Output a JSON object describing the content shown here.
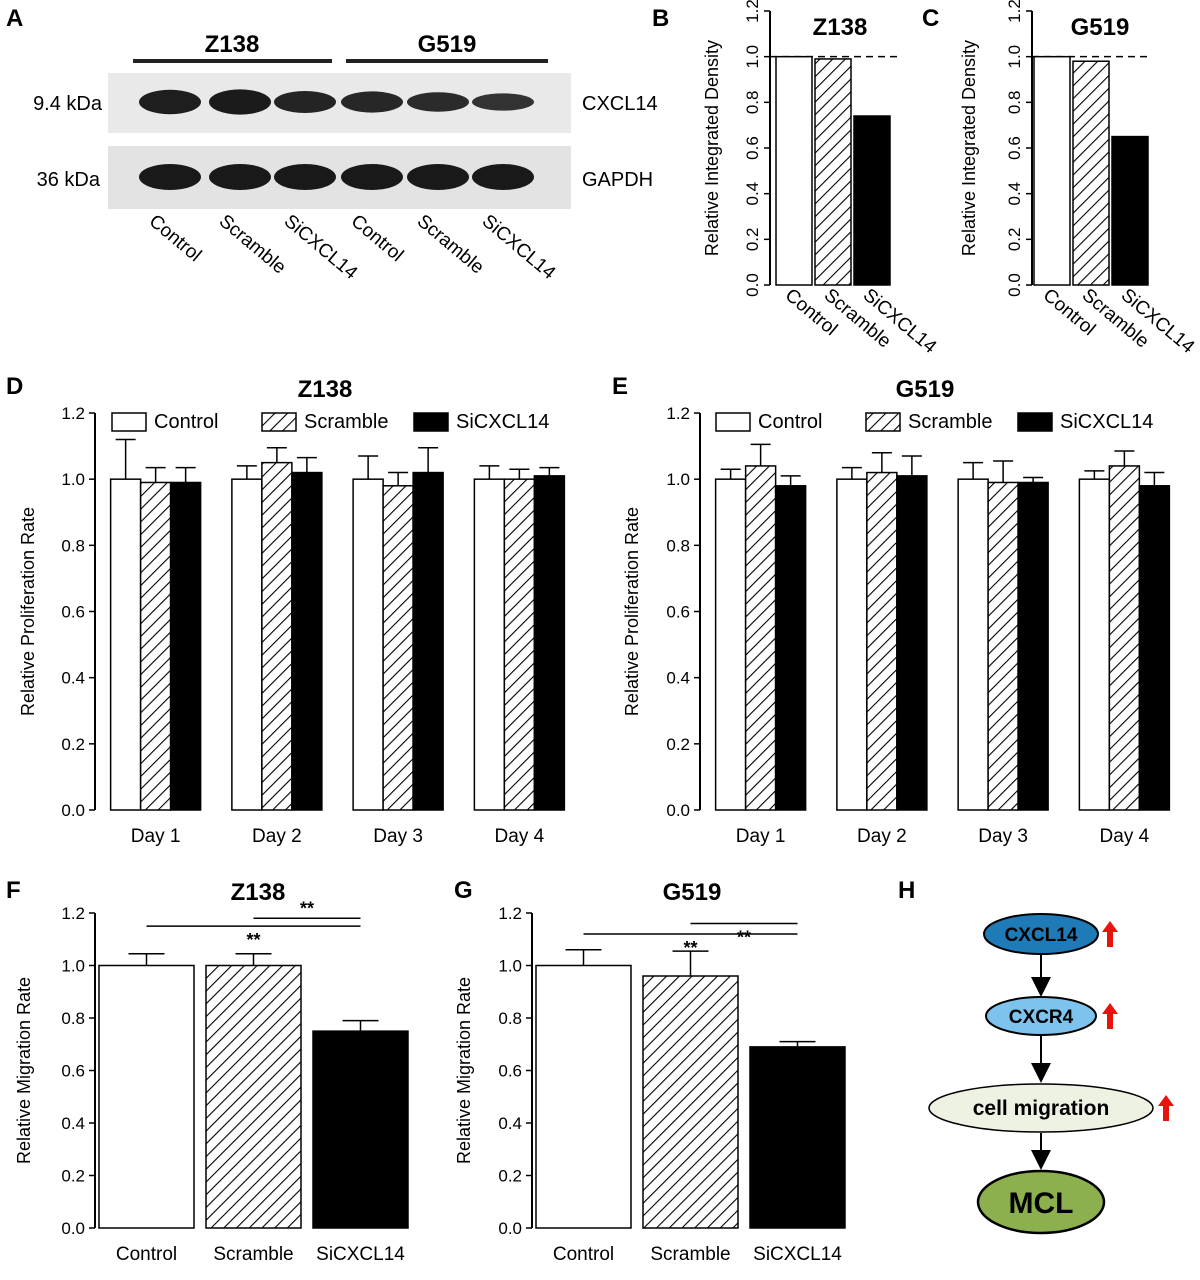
{
  "panels": {
    "A": {
      "letter": "A",
      "groups": [
        "Z138",
        "G519"
      ],
      "bands": [
        {
          "size_label": "9.4 kDa",
          "protein": "CXCL14",
          "intensities": [
            0.9,
            0.95,
            0.75,
            0.7,
            0.6,
            0.45
          ]
        },
        {
          "size_label": "36 kDa",
          "protein": "GAPDH",
          "intensities": [
            1,
            1,
            1,
            1,
            1,
            1
          ]
        }
      ],
      "lanes": [
        "Control",
        "Scramble",
        "SiCXCL14",
        "Control",
        "Scramble",
        "SiCXCL14"
      ]
    },
    "B": {
      "letter": "B"
    },
    "C": {
      "letter": "C"
    },
    "D": {
      "letter": "D"
    },
    "E": {
      "letter": "E"
    },
    "F": {
      "letter": "F"
    },
    "G": {
      "letter": "G"
    },
    "H": {
      "letter": "H",
      "nodes": [
        "CXCL14",
        "CXCR4",
        "cell migration",
        "MCL"
      ],
      "up_arrow_color": "#e8140c",
      "node_colors": [
        "#1f7ab8",
        "#7ec3ee",
        "#eef2e2",
        "#8db04f"
      ]
    }
  },
  "chart_data": [
    {
      "id": "B",
      "type": "bar",
      "title": "Z138",
      "xlabel": "",
      "ylabel": "Relative Integrated Density",
      "categories": [
        "Control",
        "Scramble",
        "SiCXCL14"
      ],
      "values": [
        1.0,
        0.99,
        0.74
      ],
      "fills": [
        "white",
        "hatch",
        "black"
      ],
      "ylim": [
        0,
        1.2
      ],
      "yticks": [
        "0.0",
        "0.2",
        "0.4",
        "0.6",
        "0.8",
        "1.0",
        "1.2"
      ],
      "reference_line": 1.0,
      "rotated_labels": true
    },
    {
      "id": "C",
      "type": "bar",
      "title": "G519",
      "xlabel": "",
      "ylabel": "Relative Integrated Density",
      "categories": [
        "Control",
        "Scramble",
        "SiCXCL14"
      ],
      "values": [
        1.0,
        0.98,
        0.65
      ],
      "fills": [
        "white",
        "hatch",
        "black"
      ],
      "ylim": [
        0,
        1.2
      ],
      "yticks": [
        "0.0",
        "0.2",
        "0.4",
        "0.6",
        "0.8",
        "1.0",
        "1.2"
      ],
      "reference_line": 1.0,
      "rotated_labels": true
    },
    {
      "id": "D",
      "type": "bar",
      "title": "Z138",
      "xlabel": "",
      "ylabel": "Relative Proliferation Rate",
      "categories": [
        "Day 1",
        "Day 2",
        "Day 3",
        "Day 4"
      ],
      "series": [
        {
          "name": "Control",
          "fill": "white",
          "values": [
            1.0,
            1.0,
            1.0,
            1.0
          ],
          "errors": [
            0.12,
            0.04,
            0.07,
            0.04
          ]
        },
        {
          "name": "Scramble",
          "fill": "hatch",
          "values": [
            0.99,
            1.05,
            0.98,
            1.0
          ],
          "errors": [
            0.045,
            0.045,
            0.04,
            0.03
          ]
        },
        {
          "name": "SiCXCL14",
          "fill": "black",
          "values": [
            0.99,
            1.02,
            1.02,
            1.01
          ],
          "errors": [
            0.045,
            0.045,
            0.075,
            0.025
          ]
        }
      ],
      "ylim": [
        0,
        1.2
      ],
      "yticks": [
        "0.0",
        "0.2",
        "0.4",
        "0.6",
        "0.8",
        "1.0",
        "1.2"
      ],
      "legend": "top"
    },
    {
      "id": "E",
      "type": "bar",
      "title": "G519",
      "xlabel": "",
      "ylabel": "Relative Proliferation Rate",
      "categories": [
        "Day 1",
        "Day 2",
        "Day 3",
        "Day 4"
      ],
      "series": [
        {
          "name": "Control",
          "fill": "white",
          "values": [
            1.0,
            1.0,
            1.0,
            1.0
          ],
          "errors": [
            0.03,
            0.035,
            0.05,
            0.025
          ]
        },
        {
          "name": "Scramble",
          "fill": "hatch",
          "values": [
            1.04,
            1.02,
            0.99,
            1.04
          ],
          "errors": [
            0.065,
            0.06,
            0.065,
            0.045
          ]
        },
        {
          "name": "SiCXCL14",
          "fill": "black",
          "values": [
            0.98,
            1.01,
            0.99,
            0.98
          ],
          "errors": [
            0.03,
            0.06,
            0.015,
            0.04
          ]
        }
      ],
      "ylim": [
        0,
        1.2
      ],
      "yticks": [
        "0.0",
        "0.2",
        "0.4",
        "0.6",
        "0.8",
        "1.0",
        "1.2"
      ],
      "legend": "top"
    },
    {
      "id": "F",
      "type": "bar",
      "title": "Z138",
      "xlabel": "",
      "ylabel": "Relative Migration Rate",
      "categories": [
        "Control",
        "Scramble",
        "SiCXCL14"
      ],
      "values": [
        1.0,
        1.0,
        0.75
      ],
      "errors": [
        0.045,
        0.045,
        0.04
      ],
      "fills": [
        "white",
        "hatch",
        "black"
      ],
      "ylim": [
        0,
        1.2
      ],
      "yticks": [
        "0.0",
        "0.2",
        "0.4",
        "0.6",
        "0.8",
        "1.0",
        "1.2"
      ],
      "significance": [
        {
          "from": 0,
          "to": 2,
          "y": 1.15,
          "label": "**"
        },
        {
          "from": 1,
          "to": 2,
          "y": 1.18,
          "label": "**"
        }
      ]
    },
    {
      "id": "G",
      "type": "bar",
      "title": "G519",
      "xlabel": "",
      "ylabel": "Relative Migration Rate",
      "categories": [
        "Control",
        "Scramble",
        "SiCXCL14"
      ],
      "values": [
        1.0,
        0.96,
        0.69
      ],
      "errors": [
        0.06,
        0.095,
        0.02
      ],
      "fills": [
        "white",
        "hatch",
        "black"
      ],
      "ylim": [
        0,
        1.2
      ],
      "yticks": [
        "0.0",
        "0.2",
        "0.4",
        "0.6",
        "0.8",
        "1.0",
        "1.2"
      ],
      "significance": [
        {
          "from": 0,
          "to": 2,
          "y": 1.12,
          "label": "**"
        },
        {
          "from": 1,
          "to": 2,
          "y": 1.16,
          "label": "**"
        }
      ]
    }
  ]
}
